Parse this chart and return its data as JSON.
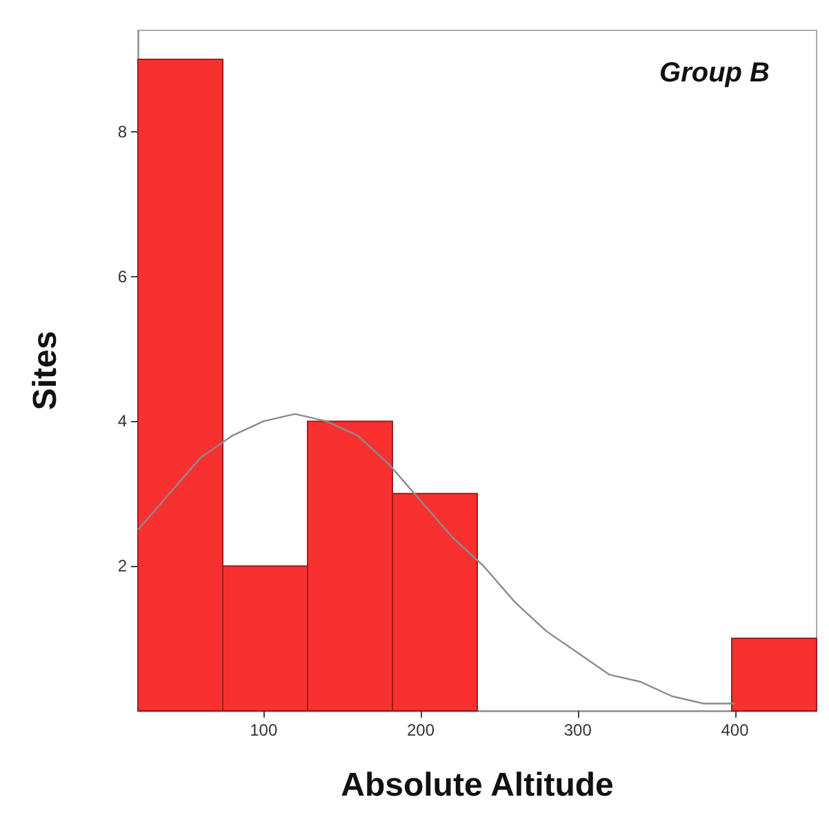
{
  "chart_data": {
    "type": "histogram",
    "title": "Group B",
    "xlabel": "Absolute Altitude",
    "ylabel": "Sites",
    "bins": [
      20,
      74,
      128,
      182,
      236,
      290,
      344,
      398,
      452
    ],
    "values": [
      9,
      2,
      4,
      3,
      0,
      0,
      0,
      1
    ],
    "color": "#f83030",
    "xlim": [
      20,
      452
    ],
    "xticks": [
      100,
      200,
      300,
      400
    ],
    "ylim": [
      0,
      9.4
    ],
    "yticks": [
      2,
      4,
      6,
      8
    ],
    "series": [
      {
        "type": "line",
        "color": "#8c8c8c",
        "x": [
          20,
          40,
          60,
          80,
          100,
          120,
          140,
          160,
          180,
          200,
          220,
          240,
          260,
          280,
          300,
          320,
          340,
          360,
          380,
          400
        ],
        "values": [
          2.5,
          3.0,
          3.5,
          3.8,
          4.0,
          4.1,
          4.0,
          3.8,
          3.4,
          2.9,
          2.4,
          2.0,
          1.5,
          1.1,
          0.8,
          0.5,
          0.4,
          0.2,
          0.1,
          0.1
        ]
      }
    ]
  }
}
